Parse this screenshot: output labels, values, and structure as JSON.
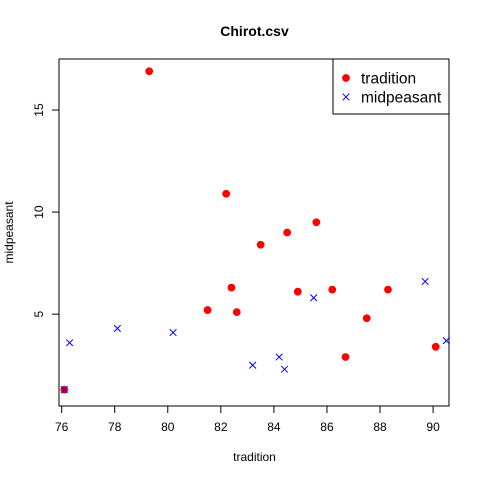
{
  "chart_data": {
    "type": "scatter",
    "title": "Chirot.csv",
    "xlabel": "tradition",
    "ylabel": "midpeasant",
    "xlim": [
      75.9,
      90.6
    ],
    "ylim": [
      0.5,
      17.5
    ],
    "xticks": [
      76,
      78,
      80,
      82,
      84,
      86,
      88,
      90
    ],
    "yticks": [
      5,
      10,
      15
    ],
    "grid": false,
    "legend_position": "top-right",
    "series": [
      {
        "name": "tradition",
        "marker": "filled-circle",
        "color": "#ff0000",
        "points": [
          {
            "x": 76.1,
            "y": 1.3
          },
          {
            "x": 79.3,
            "y": 16.9
          },
          {
            "x": 81.5,
            "y": 5.2
          },
          {
            "x": 82.2,
            "y": 10.9
          },
          {
            "x": 82.4,
            "y": 6.3
          },
          {
            "x": 82.6,
            "y": 5.1
          },
          {
            "x": 83.5,
            "y": 8.4
          },
          {
            "x": 84.5,
            "y": 9.0
          },
          {
            "x": 84.9,
            "y": 6.1
          },
          {
            "x": 85.6,
            "y": 9.5
          },
          {
            "x": 86.2,
            "y": 6.2
          },
          {
            "x": 86.7,
            "y": 2.9
          },
          {
            "x": 87.5,
            "y": 4.8
          },
          {
            "x": 88.3,
            "y": 6.2
          },
          {
            "x": 90.1,
            "y": 3.4
          }
        ]
      },
      {
        "name": "midpeasant",
        "marker": "x-cross",
        "color": "#0000ff",
        "points": [
          {
            "x": 76.1,
            "y": 1.3
          },
          {
            "x": 76.3,
            "y": 3.6
          },
          {
            "x": 78.1,
            "y": 4.3
          },
          {
            "x": 80.2,
            "y": 4.1
          },
          {
            "x": 83.2,
            "y": 2.5
          },
          {
            "x": 84.2,
            "y": 2.9
          },
          {
            "x": 84.4,
            "y": 2.3
          },
          {
            "x": 85.5,
            "y": 5.8
          },
          {
            "x": 89.7,
            "y": 6.6
          },
          {
            "x": 90.5,
            "y": 3.7
          }
        ]
      }
    ]
  }
}
